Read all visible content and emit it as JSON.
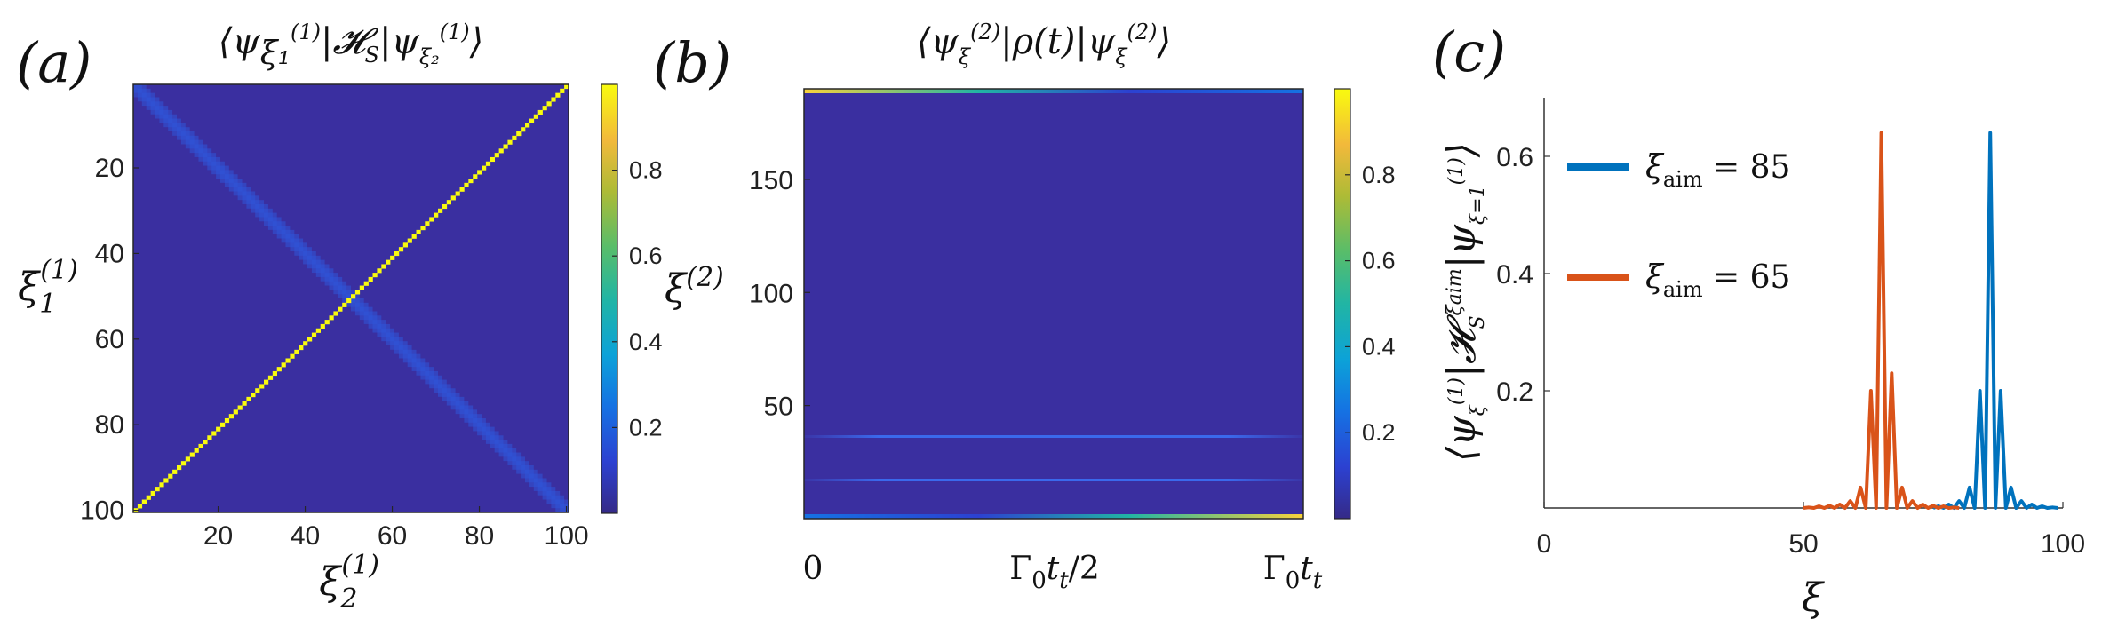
{
  "panels": {
    "a": {
      "label": "(a)",
      "title": "⟨ψ(1)ξ₁|𝓗S|ψ(1)ξ₂⟩",
      "xlabel": "ξ(1)2",
      "ylabel": "ξ(1)1",
      "xticks": [
        "20",
        "40",
        "60",
        "80",
        "100"
      ],
      "yticks": [
        "20",
        "40",
        "60",
        "80",
        "100"
      ],
      "cbticks": [
        "0.2",
        "0.4",
        "0.6",
        "0.8"
      ]
    },
    "b": {
      "label": "(b)",
      "title": "⟨ψ(2)ξ|ρ(t)|ψ(2)ξ⟩",
      "ylabel": "ξ(2)",
      "xticks": [
        "0",
        "Γ0tt/2",
        "Γ0tt"
      ],
      "yticks": [
        "50",
        "100",
        "150"
      ],
      "cbticks": [
        "0.2",
        "0.4",
        "0.6",
        "0.8"
      ]
    },
    "c": {
      "label": "(c)",
      "ylabel": "⟨ψ(1)ξ|𝓗Sξaim|ψ(1)ξ=1⟩",
      "xlabel": "ξ",
      "xticks": [
        "0",
        "50",
        "100"
      ],
      "yticks": [
        "0.2",
        "0.4",
        "0.6"
      ]
    }
  },
  "chart_data": [
    {
      "type": "heatmap",
      "panel": "a",
      "title": "⟨ψ(1)ξ₁|𝓗S|ψ(1)ξ₂⟩",
      "xlabel": "ξ(1)2",
      "ylabel": "ξ(1)1",
      "x_range": [
        1,
        100
      ],
      "y_range": [
        1,
        100
      ],
      "y_reversed": true,
      "color_range": [
        0,
        1
      ],
      "colormap": "parula",
      "description_values": {
        "diagonal": 1.0,
        "near_diagonal": 0.1,
        "background": 0.0
      }
    },
    {
      "type": "heatmap",
      "panel": "b",
      "title": "⟨ψ(2)ξ|ρ(t)|ψ(2)ξ⟩",
      "ylabel": "ξ(2)",
      "y_range": [
        1,
        190
      ],
      "color_range": [
        0,
        1
      ],
      "colormap": "parula",
      "bright_rows": [
        {
          "xi": 190,
          "value_start": 0.9,
          "value_end": 0.3
        },
        {
          "xi": 1,
          "value_start": 0.3,
          "value_end": 0.9
        },
        {
          "xi": 38,
          "value": 0.25
        },
        {
          "xi": 18,
          "value": 0.25
        }
      ]
    },
    {
      "type": "line",
      "panel": "c",
      "xlabel": "ξ",
      "xlim": [
        0,
        100
      ],
      "ylim": [
        0,
        0.7
      ],
      "series": [
        {
          "name": "ξaim = 85",
          "color": "#0072BD",
          "x": [
            75,
            76,
            77,
            78,
            79,
            80,
            81,
            82,
            83,
            84,
            85,
            86,
            87,
            88,
            89,
            90,
            91,
            92,
            93,
            94,
            95,
            96,
            97,
            98,
            99
          ],
          "y": [
            0.0,
            0.003,
            0.0,
            0.006,
            0.0,
            0.012,
            0.0,
            0.035,
            0.0,
            0.2,
            0.0,
            0.64,
            0.0,
            0.2,
            0.0,
            0.035,
            0.0,
            0.012,
            0.0,
            0.006,
            0.0,
            0.003,
            0.0,
            0.001,
            0.0
          ]
        },
        {
          "name": "ξaim = 65",
          "color": "#D95319",
          "x": [
            50,
            51,
            52,
            53,
            54,
            55,
            56,
            57,
            58,
            59,
            60,
            61,
            62,
            63,
            64,
            65,
            66,
            67,
            68,
            69,
            70,
            71,
            72,
            73,
            74,
            75,
            76,
            77,
            78,
            79,
            80
          ],
          "y": [
            0.0,
            0.001,
            0.0,
            0.003,
            0.0,
            0.004,
            0.0,
            0.006,
            0.0,
            0.012,
            0.0,
            0.035,
            0.0,
            0.2,
            0.0,
            0.64,
            0.0,
            0.23,
            0.0,
            0.035,
            0.0,
            0.012,
            0.0,
            0.006,
            0.0,
            0.004,
            0.0,
            0.003,
            0.0,
            0.001,
            0.0
          ]
        }
      ]
    }
  ]
}
